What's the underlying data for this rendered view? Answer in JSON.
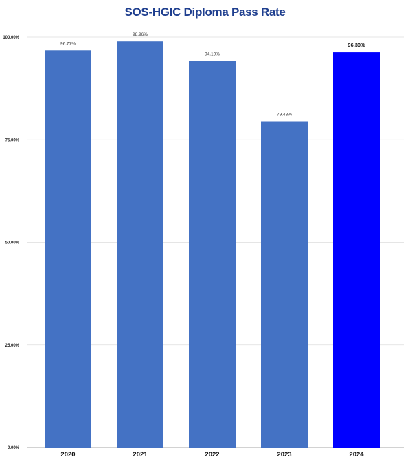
{
  "chart_data": {
    "type": "bar",
    "title": "SOS-HGIC Diploma Pass Rate",
    "categories": [
      "2020",
      "2021",
      "2022",
      "2023",
      "2024"
    ],
    "values": [
      96.77,
      98.96,
      94.19,
      79.48,
      96.3
    ],
    "value_labels": [
      "96.77%",
      "98.96%",
      "94.19%",
      "79.48%",
      "96.30%"
    ],
    "y_ticks": [
      0,
      25,
      50,
      75,
      100
    ],
    "y_tick_labels": [
      "0.00%",
      "25.00%",
      "50.00%",
      "75.00%",
      "100.00%"
    ],
    "ylim": [
      0,
      100
    ],
    "grid": true,
    "colors": {
      "bar": "#4472c4",
      "highlight_bar": "#0000ff",
      "title": "#1f3f8f",
      "grid": "#dddddd"
    },
    "highlight_index": 4
  }
}
